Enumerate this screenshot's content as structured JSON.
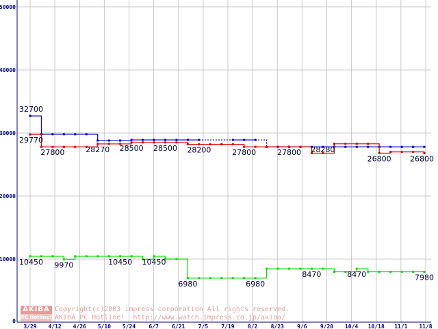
{
  "chart_data": {
    "type": "line",
    "ylim": [
      0,
      50000
    ],
    "yticks": [
      0,
      10000,
      20000,
      30000,
      40000,
      50000
    ],
    "xtick_labels": [
      "3/29",
      "4/12",
      "4/26",
      "5/10",
      "5/24",
      "6/7",
      "6/21",
      "7/5",
      "7/19",
      "8/2",
      "8/23",
      "9/6",
      "9/20",
      "10/4",
      "10/18",
      "11/1",
      "11/8"
    ],
    "grid": true,
    "colors": {
      "blue": "#0000cc",
      "red": "#dd0000",
      "green": "#00dd00",
      "grid": "#c8c8c8",
      "axis": "#000080"
    },
    "series": [
      {
        "color": "blue",
        "points": [
          {
            "t": 0,
            "v": 32700
          },
          {
            "t": 1,
            "v": 29800
          },
          {
            "t": 2,
            "v": 29800
          },
          {
            "t": 3,
            "v": 29800
          },
          {
            "t": 4,
            "v": 29800
          },
          {
            "t": 5,
            "v": 29800
          },
          {
            "t": 6,
            "v": 28800
          },
          {
            "t": 7,
            "v": 28800
          },
          {
            "t": 8,
            "v": 28800
          },
          {
            "t": 9,
            "v": 28900
          },
          {
            "t": 10,
            "v": 28900
          },
          {
            "t": 11,
            "v": 28900
          },
          {
            "t": 12,
            "v": 28900
          },
          {
            "t": 13,
            "v": 28900
          },
          {
            "t": 14,
            "v": 28900
          },
          {
            "t": 15,
            "v": 28900
          },
          {
            "t": 18,
            "v": 28900,
            "gap": true
          },
          {
            "t": 19,
            "v": 28900
          },
          {
            "t": 20,
            "v": 28900
          },
          {
            "t": 21,
            "v": 27800,
            "gap": true
          },
          {
            "t": 22,
            "v": 27800
          },
          {
            "t": 23,
            "v": 27800
          },
          {
            "t": 24,
            "v": 27800
          },
          {
            "t": 25,
            "v": 27800
          },
          {
            "t": 26,
            "v": 27800
          },
          {
            "t": 27,
            "v": 27800
          },
          {
            "t": 28,
            "v": 27800
          },
          {
            "t": 29,
            "v": 27800
          },
          {
            "t": 30,
            "v": 27800
          },
          {
            "t": 31,
            "v": 27800
          },
          {
            "t": 32,
            "v": 27800
          },
          {
            "t": 33,
            "v": 27800
          },
          {
            "t": 34,
            "v": 27800
          },
          {
            "t": 35,
            "v": 27800
          }
        ]
      },
      {
        "color": "red",
        "points": [
          {
            "t": 0,
            "v": 29770
          },
          {
            "t": 1,
            "v": 27800
          },
          {
            "t": 2,
            "v": 27800
          },
          {
            "t": 3,
            "v": 27800
          },
          {
            "t": 4,
            "v": 27800
          },
          {
            "t": 5,
            "v": 27800
          },
          {
            "t": 6,
            "v": 28270
          },
          {
            "t": 7,
            "v": 28270
          },
          {
            "t": 8,
            "v": 28270
          },
          {
            "t": 9,
            "v": 28500
          },
          {
            "t": 10,
            "v": 28500
          },
          {
            "t": 11,
            "v": 28500
          },
          {
            "t": 12,
            "v": 28500
          },
          {
            "t": 13,
            "v": 28500
          },
          {
            "t": 14,
            "v": 28200
          },
          {
            "t": 15,
            "v": 28200
          },
          {
            "t": 16,
            "v": 28200
          },
          {
            "t": 17,
            "v": 28200
          },
          {
            "t": 18,
            "v": 28200
          },
          {
            "t": 19,
            "v": 27800
          },
          {
            "t": 20,
            "v": 27800
          },
          {
            "t": 21,
            "v": 27800
          },
          {
            "t": 22,
            "v": 27800
          },
          {
            "t": 23,
            "v": 27800
          },
          {
            "t": 24,
            "v": 27800
          },
          {
            "t": 25,
            "v": 26800
          },
          {
            "t": 26,
            "v": 26800
          },
          {
            "t": 27,
            "v": 28280
          },
          {
            "t": 28,
            "v": 28280
          },
          {
            "t": 29,
            "v": 28280
          },
          {
            "t": 30,
            "v": 28280
          },
          {
            "t": 31,
            "v": 26800
          },
          {
            "t": 32,
            "v": 27000
          },
          {
            "t": 33,
            "v": 27000
          },
          {
            "t": 34,
            "v": 27000
          },
          {
            "t": 35,
            "v": 26800
          }
        ]
      },
      {
        "color": "green",
        "points": [
          {
            "t": 0,
            "v": 10450
          },
          {
            "t": 1,
            "v": 10450
          },
          {
            "t": 2,
            "v": 10450
          },
          {
            "t": 3,
            "v": 9970
          },
          {
            "t": 4,
            "v": 10450
          },
          {
            "t": 5,
            "v": 10450
          },
          {
            "t": 6,
            "v": 10450
          },
          {
            "t": 7,
            "v": 10450
          },
          {
            "t": 8,
            "v": 10450
          },
          {
            "t": 9,
            "v": 10450
          },
          {
            "t": 10,
            "v": 9970
          },
          {
            "t": 11,
            "v": 10450
          },
          {
            "t": 12,
            "v": 10000
          },
          {
            "t": 13,
            "v": 10000
          },
          {
            "t": 14,
            "v": 6980
          },
          {
            "t": 15,
            "v": 6980
          },
          {
            "t": 16,
            "v": 6980
          },
          {
            "t": 17,
            "v": 6980
          },
          {
            "t": 18,
            "v": 6980
          },
          {
            "t": 19,
            "v": 6980
          },
          {
            "t": 20,
            "v": 6980
          },
          {
            "t": 21,
            "v": 8470
          },
          {
            "t": 22,
            "v": 8470
          },
          {
            "t": 23,
            "v": 8470
          },
          {
            "t": 24,
            "v": 8470
          },
          {
            "t": 25,
            "v": 8470
          },
          {
            "t": 26,
            "v": 8470
          },
          {
            "t": 27,
            "v": 7980
          },
          {
            "t": 28,
            "v": 7980
          },
          {
            "t": 29,
            "v": 8470
          },
          {
            "t": 30,
            "v": 7980
          },
          {
            "t": 31,
            "v": 7980
          },
          {
            "t": 32,
            "v": 7980
          },
          {
            "t": 33,
            "v": 7980
          },
          {
            "t": 34,
            "v": 7980
          },
          {
            "t": 35,
            "v": 7980
          }
        ]
      }
    ],
    "data_labels": [
      {
        "t": 0,
        "v": 32700,
        "text": "32700",
        "pos": "above"
      },
      {
        "t": 0,
        "v": 29770,
        "text": "29770",
        "pos": "below"
      },
      {
        "t": 2,
        "v": 27800,
        "text": "27800",
        "pos": "below"
      },
      {
        "t": 6,
        "v": 28270,
        "text": "28270",
        "pos": "below"
      },
      {
        "t": 9,
        "v": 28500,
        "text": "28500",
        "pos": "below"
      },
      {
        "t": 12,
        "v": 28500,
        "text": "28500",
        "pos": "below"
      },
      {
        "t": 15,
        "v": 28200,
        "text": "28200",
        "pos": "below"
      },
      {
        "t": 19,
        "v": 27800,
        "text": "27800",
        "pos": "below"
      },
      {
        "t": 23,
        "v": 27800,
        "text": "27800",
        "pos": "below"
      },
      {
        "t": 26,
        "v": 28280,
        "text": "28280",
        "pos": "below"
      },
      {
        "t": 31,
        "v": 26800,
        "text": "26800",
        "pos": "below"
      },
      {
        "t": 35,
        "v": 26800,
        "text": "26800",
        "pos": "below"
      },
      {
        "t": 0,
        "v": 10450,
        "text": "10450",
        "pos": "below"
      },
      {
        "t": 3,
        "v": 9970,
        "text": "9970",
        "pos": "below"
      },
      {
        "t": 8,
        "v": 10450,
        "text": "10450",
        "pos": "below"
      },
      {
        "t": 11,
        "v": 10450,
        "text": "10450",
        "pos": "below"
      },
      {
        "t": 14,
        "v": 6980,
        "text": "6980",
        "pos": "below"
      },
      {
        "t": 20,
        "v": 6980,
        "text": "6980",
        "pos": "below"
      },
      {
        "t": 25,
        "v": 8470,
        "text": "8470",
        "pos": "below"
      },
      {
        "t": 29,
        "v": 8470,
        "text": "8470",
        "pos": "below"
      },
      {
        "t": 35,
        "v": 7980,
        "text": "7980",
        "pos": "below"
      }
    ]
  },
  "watermark": {
    "logo_top": "AKIBA",
    "logo_bottom": "PC Hotline!",
    "line1": "Copyright(c)2003 impress corporation All rights reserved.",
    "line2": "AKIBA PC Hotline!  http://www.watch.impress.co.jp/akiba/"
  }
}
